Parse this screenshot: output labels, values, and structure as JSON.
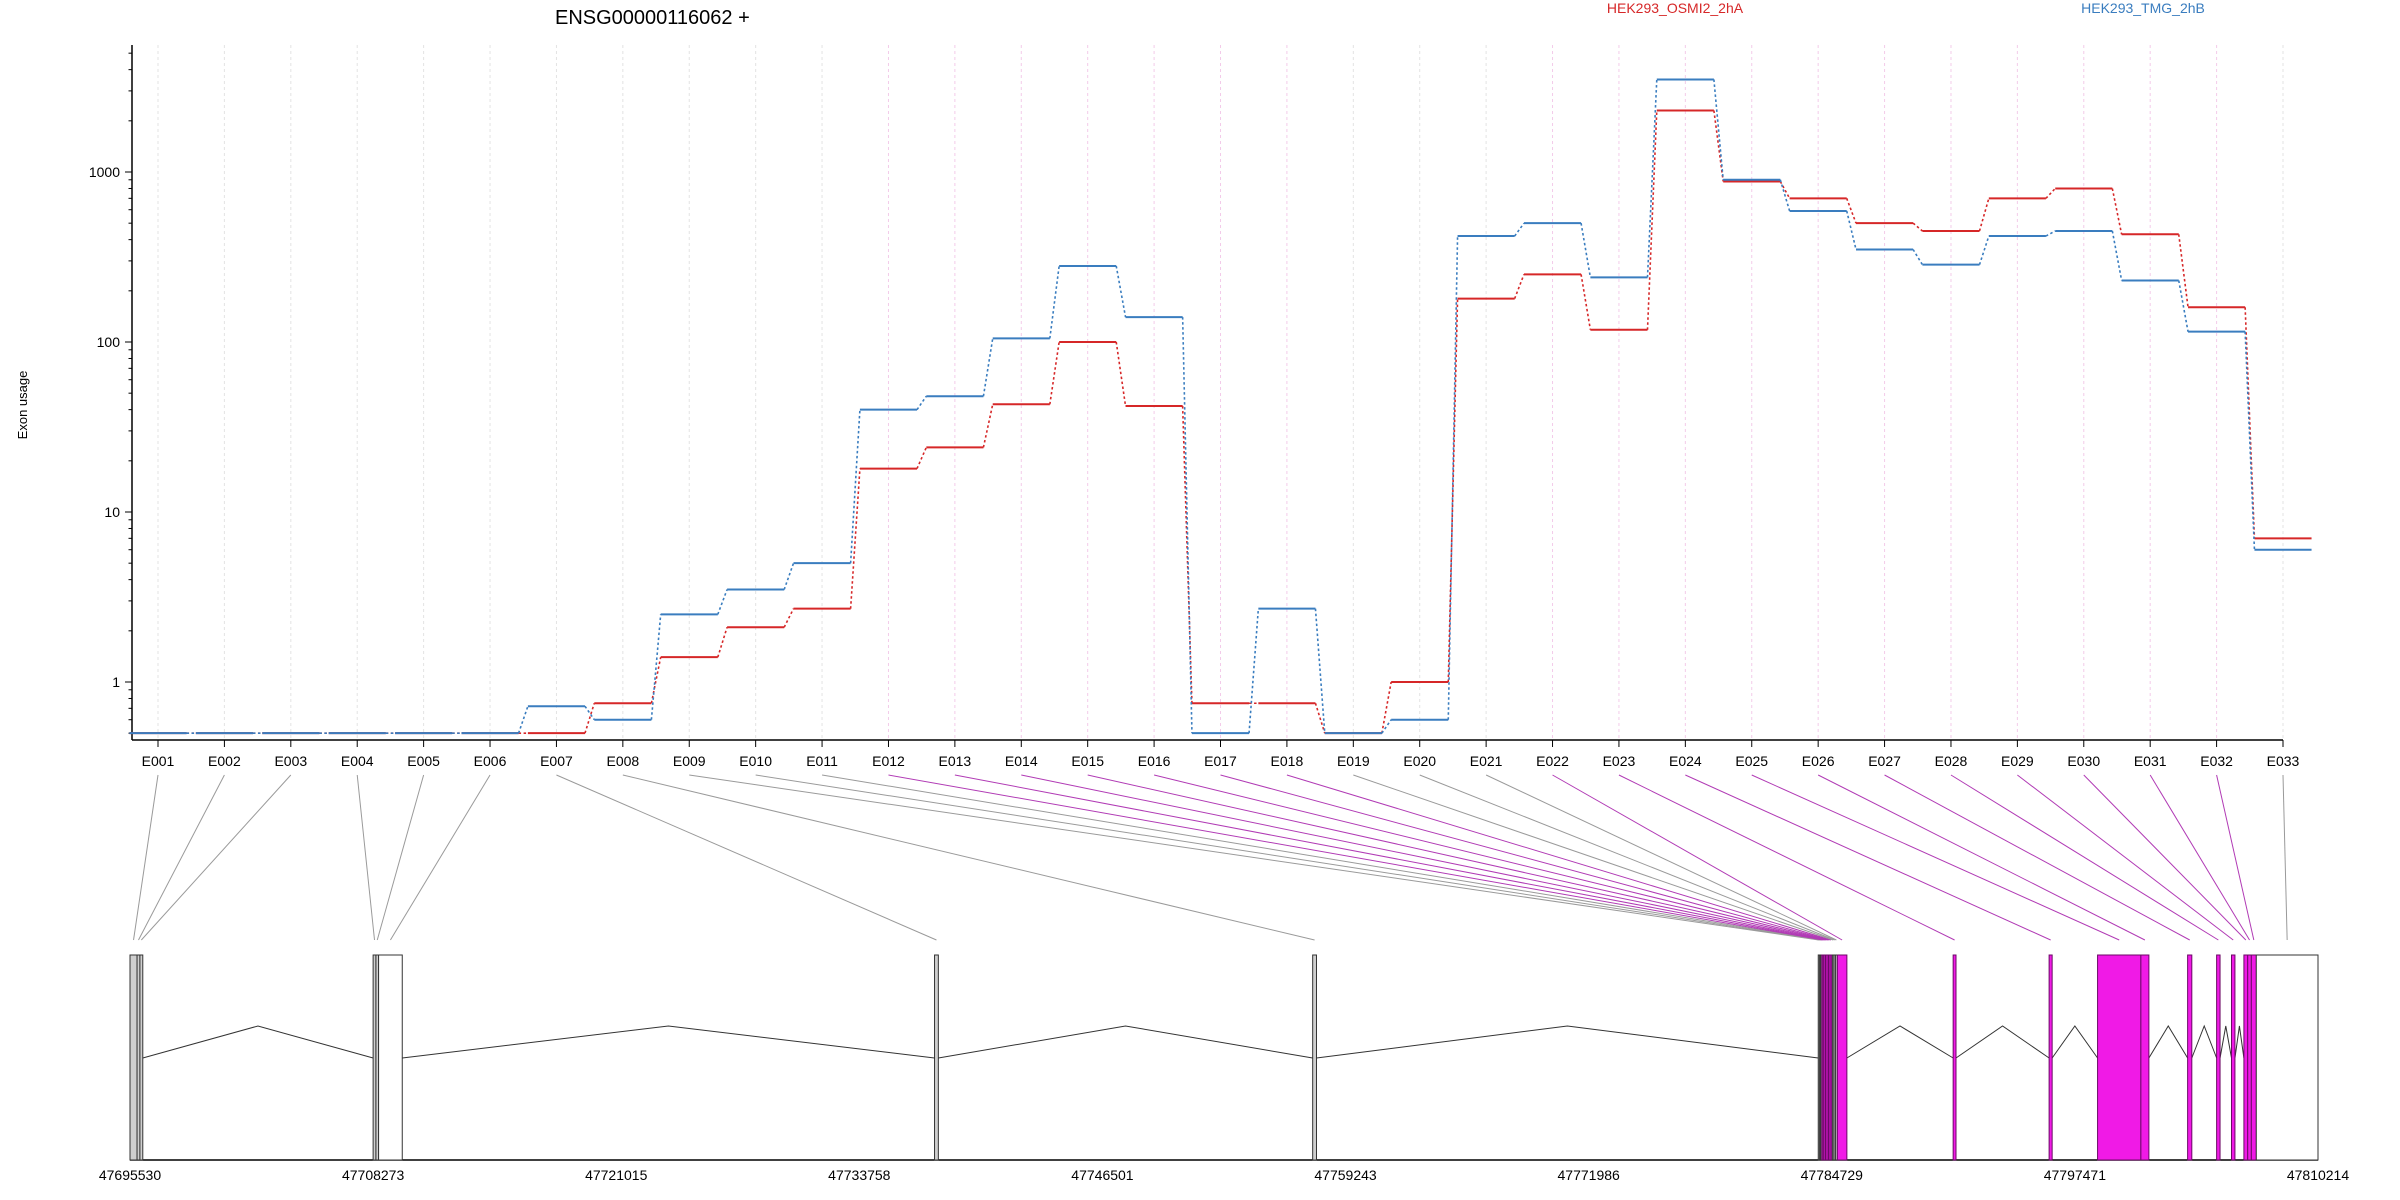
{
  "chart_data": {
    "type": "line",
    "title": "ENSG00000116062 +",
    "ylabel": "Exon usage",
    "xlabel": "",
    "y_scale": "log",
    "yticks": [
      {
        "value": 1,
        "label": "1"
      },
      {
        "value": 10,
        "label": "10"
      },
      {
        "value": 100,
        "label": "100"
      },
      {
        "value": 1000,
        "label": "1000"
      }
    ],
    "grid": true,
    "legend_placement": "top-right",
    "categories": [
      "E001",
      "E002",
      "E003",
      "E004",
      "E005",
      "E006",
      "E007",
      "E008",
      "E009",
      "E010",
      "E011",
      "E012",
      "E013",
      "E014",
      "E015",
      "E016",
      "E017",
      "E018",
      "E019",
      "E020",
      "E021",
      "E022",
      "E023",
      "E024",
      "E025",
      "E026",
      "E027",
      "E028",
      "E029",
      "E030",
      "E031",
      "E032",
      "E033"
    ],
    "series": [
      {
        "name": "HEK293_OSMI2_2hA",
        "color": "#d62728",
        "values": [
          0.5,
          0.5,
          0.5,
          0.5,
          0.5,
          0.5,
          0.5,
          0.75,
          1.4,
          2.1,
          2.7,
          18,
          24,
          43,
          100,
          42,
          0.75,
          0.75,
          0.5,
          1.0,
          180,
          250,
          118,
          2300,
          880,
          700,
          500,
          450,
          700,
          800,
          430,
          160,
          7
        ]
      },
      {
        "name": "HEK293_TMG_2hB",
        "color": "#3a7dbf",
        "values": [
          0.5,
          0.5,
          0.5,
          0.5,
          0.5,
          0.5,
          0.72,
          0.6,
          2.5,
          3.5,
          5.0,
          40,
          48,
          105,
          280,
          140,
          0.5,
          2.7,
          0.5,
          0.6,
          420,
          500,
          240,
          3500,
          900,
          590,
          350,
          285,
          420,
          450,
          230,
          115,
          6
        ]
      }
    ],
    "exon_highlighted": [
      false,
      false,
      false,
      false,
      false,
      false,
      false,
      false,
      false,
      false,
      false,
      true,
      true,
      true,
      true,
      true,
      true,
      true,
      false,
      false,
      false,
      true,
      true,
      true,
      true,
      true,
      true,
      true,
      true,
      true,
      true,
      true,
      false
    ],
    "gene_model": {
      "genomic_start": 47695530,
      "genomic_end": 47810214,
      "axis_ticks": [
        "47695530",
        "47708273",
        "47721015",
        "47733758",
        "47746501",
        "47759243",
        "47771986",
        "47784729",
        "47797471",
        "47810214"
      ],
      "highlight_color": "#f01ae6"
    }
  }
}
